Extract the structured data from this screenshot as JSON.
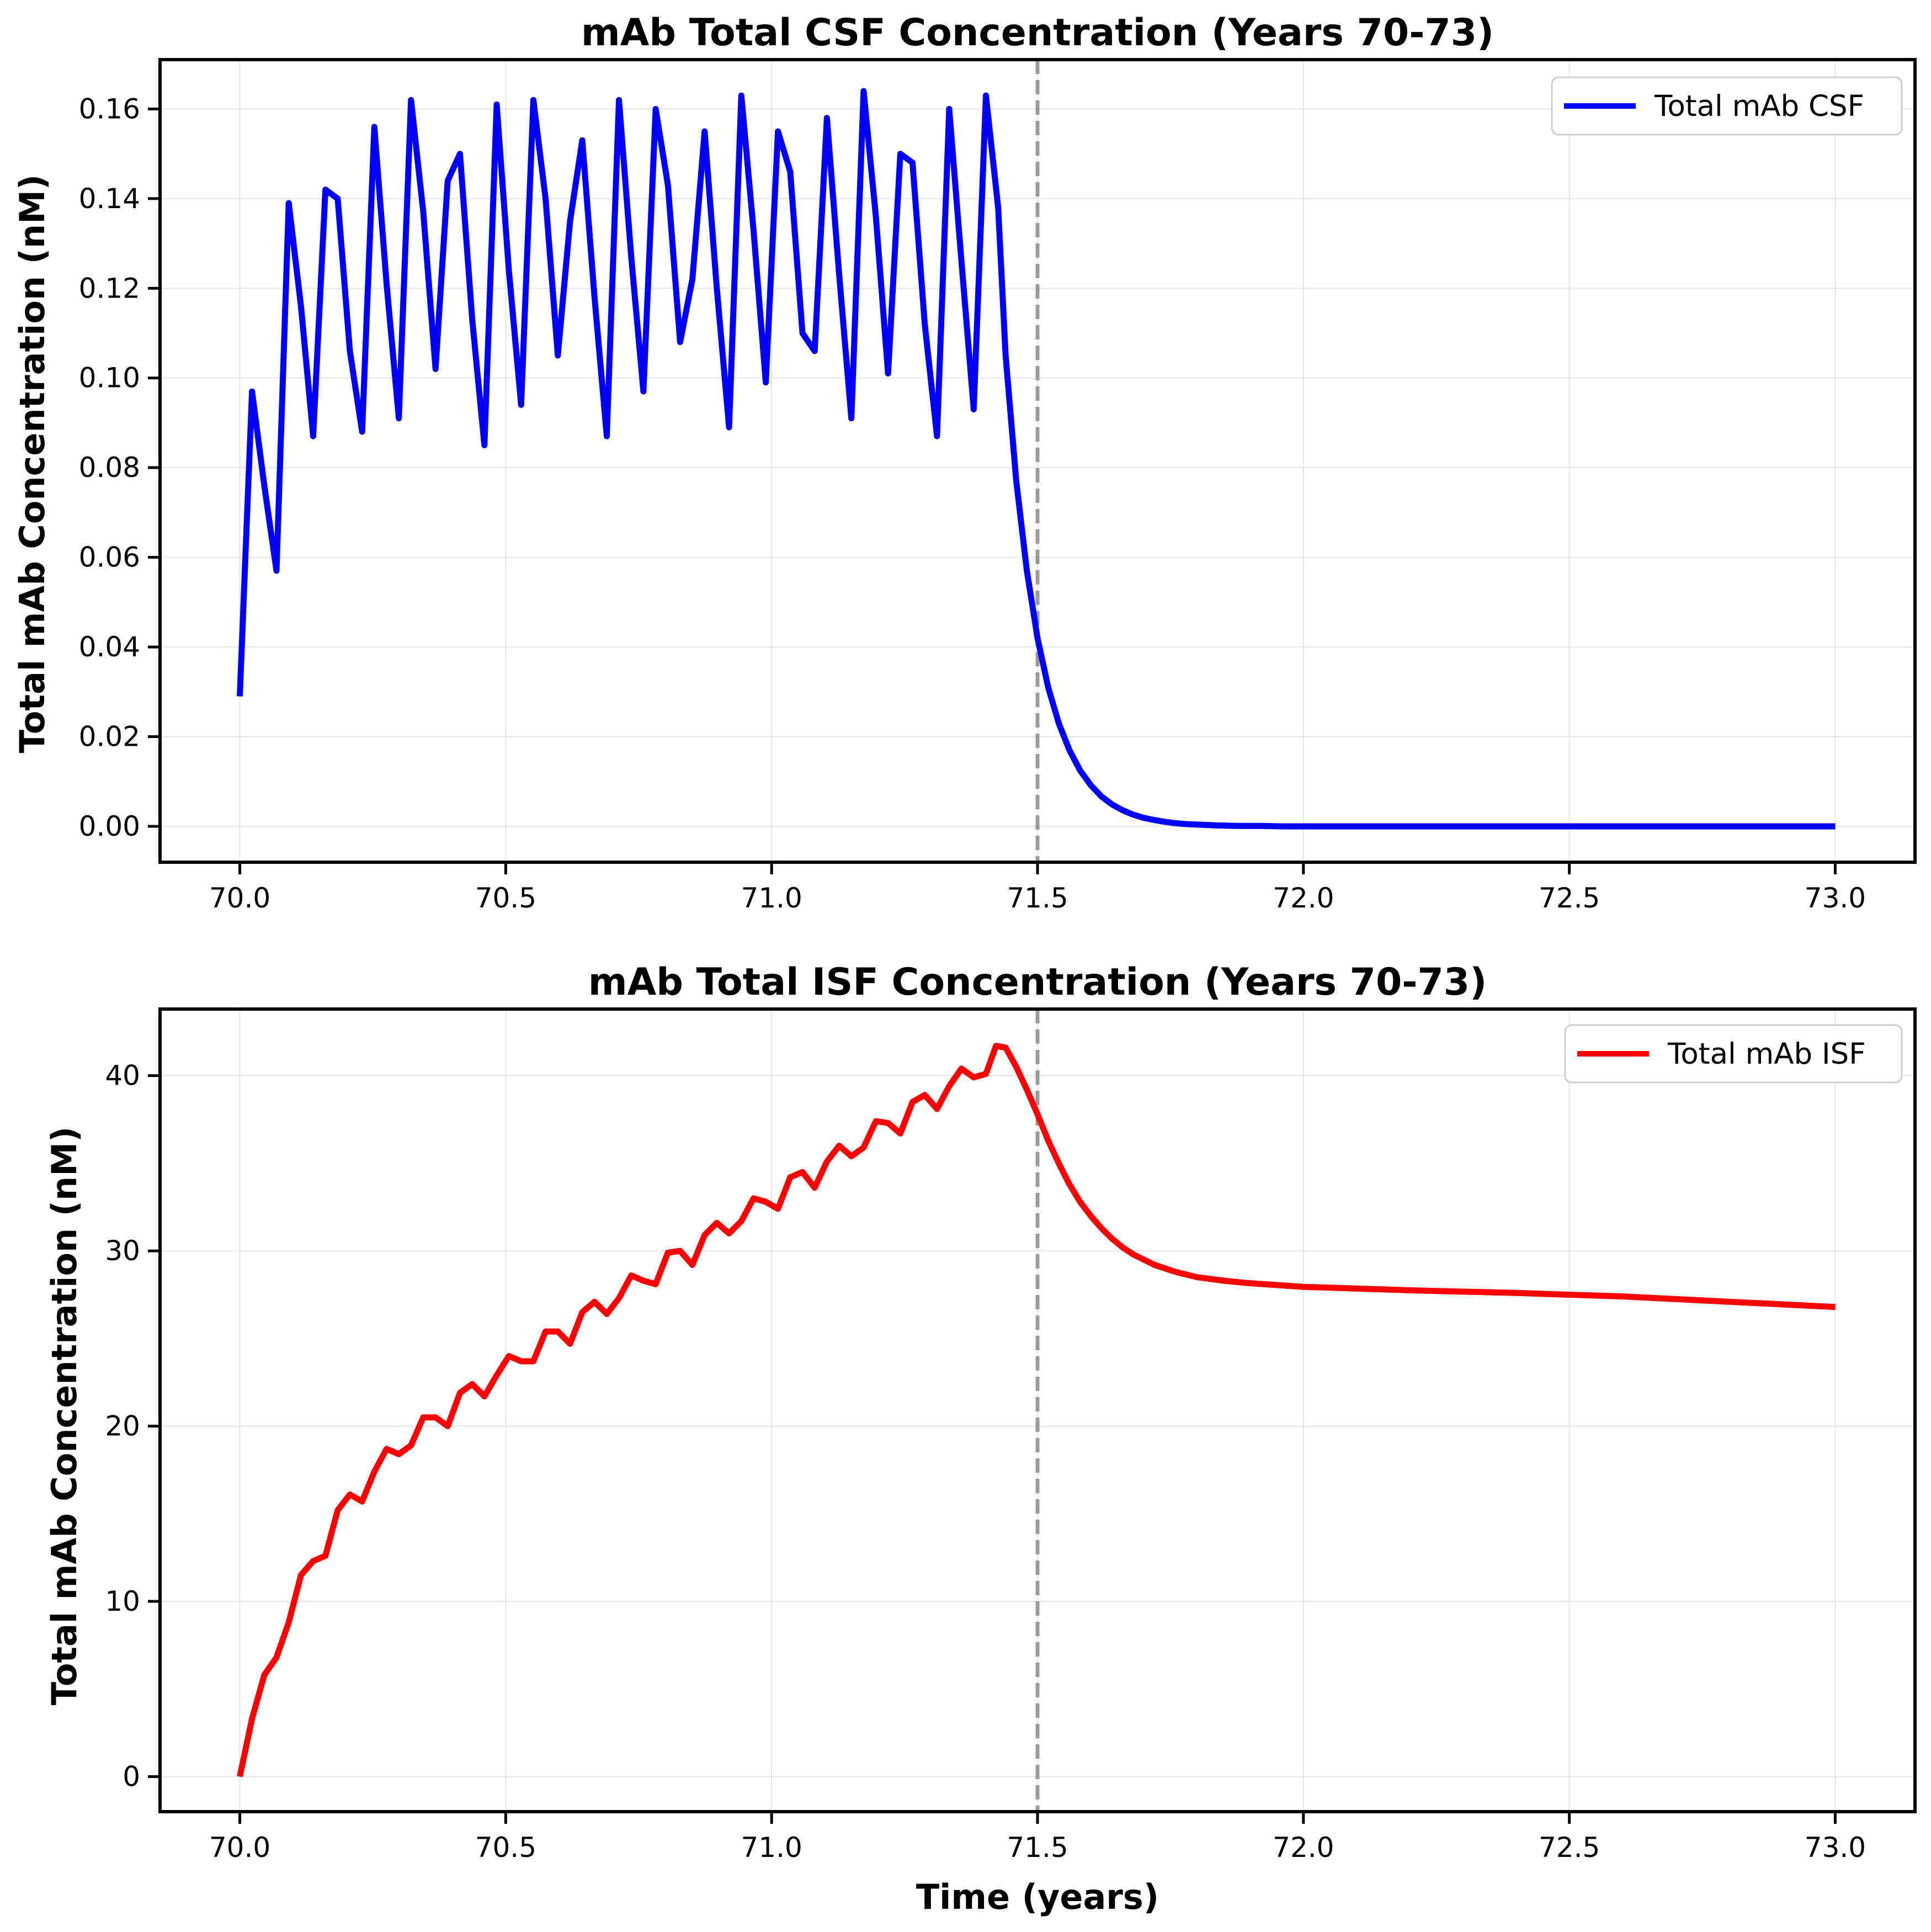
{
  "figure": {
    "background": "#ffffff"
  },
  "chart_data": [
    {
      "type": "line",
      "title": "mAb Total CSF Concentration (Years 70-73)",
      "xlabel": "",
      "ylabel": "Total mAb Concentration (nM)",
      "xlim": [
        69.85,
        73.15
      ],
      "ylim": [
        -0.008,
        0.171
      ],
      "xticks": [
        70.0,
        70.5,
        71.0,
        71.5,
        72.0,
        72.5,
        73.0
      ],
      "xtick_labels": [
        "70.0",
        "70.5",
        "71.0",
        "71.5",
        "72.0",
        "72.5",
        "73.0"
      ],
      "yticks": [
        0.0,
        0.02,
        0.04,
        0.06,
        0.08,
        0.1,
        0.12,
        0.14,
        0.16
      ],
      "ytick_labels": [
        "0.00",
        "0.02",
        "0.04",
        "0.06",
        "0.08",
        "0.10",
        "0.12",
        "0.14",
        "0.16"
      ],
      "grid": true,
      "legend": "top-right",
      "vline": {
        "x": 71.5,
        "color": "#999999",
        "style": "dashed"
      },
      "series": [
        {
          "name": "Total mAb CSF",
          "color": "#0000ff",
          "x": [
            70.0,
            70.023,
            70.046,
            70.069,
            70.092,
            70.115,
            70.138,
            70.161,
            70.184,
            70.207,
            70.23,
            70.253,
            70.276,
            70.299,
            70.322,
            70.345,
            70.368,
            70.391,
            70.414,
            70.437,
            70.46,
            70.483,
            70.506,
            70.529,
            70.552,
            70.575,
            70.598,
            70.621,
            70.644,
            70.667,
            70.69,
            70.713,
            70.736,
            70.759,
            70.782,
            70.805,
            70.828,
            70.851,
            70.874,
            70.897,
            70.92,
            70.943,
            70.966,
            70.989,
            71.012,
            71.035,
            71.058,
            71.081,
            71.104,
            71.127,
            71.15,
            71.173,
            71.196,
            71.219,
            71.242,
            71.265,
            71.288,
            71.311,
            71.334,
            71.357,
            71.38,
            71.403,
            71.426,
            71.44,
            71.46,
            71.48,
            71.5,
            71.52,
            71.54,
            71.56,
            71.58,
            71.6,
            71.62,
            71.64,
            71.66,
            71.68,
            71.7,
            71.72,
            71.74,
            71.76,
            71.78,
            71.8,
            71.84,
            71.88,
            71.92,
            71.96,
            72.0,
            72.1,
            72.2,
            72.4,
            72.6,
            72.8,
            73.0
          ],
          "y": [
            0.029,
            0.097,
            0.076,
            0.057,
            0.139,
            0.116,
            0.087,
            0.142,
            0.14,
            0.106,
            0.088,
            0.156,
            0.121,
            0.091,
            0.162,
            0.137,
            0.102,
            0.144,
            0.15,
            0.113,
            0.085,
            0.161,
            0.124,
            0.094,
            0.162,
            0.14,
            0.105,
            0.135,
            0.153,
            0.118,
            0.087,
            0.162,
            0.127,
            0.097,
            0.16,
            0.143,
            0.108,
            0.122,
            0.155,
            0.12,
            0.089,
            0.163,
            0.133,
            0.099,
            0.155,
            0.146,
            0.11,
            0.106,
            0.158,
            0.123,
            0.091,
            0.164,
            0.136,
            0.101,
            0.15,
            0.148,
            0.112,
            0.087,
            0.16,
            0.126,
            0.093,
            0.163,
            0.138,
            0.105,
            0.077,
            0.057,
            0.042,
            0.031,
            0.023,
            0.017,
            0.0125,
            0.0092,
            0.0067,
            0.0049,
            0.0036,
            0.0026,
            0.0019,
            0.0014,
            0.001,
            0.0007,
            0.0005,
            0.0004,
            0.0002,
            0.0001,
            0.0001,
            0.0,
            0.0,
            0.0,
            0.0,
            0.0,
            0.0,
            0.0,
            0.0
          ]
        }
      ]
    },
    {
      "type": "line",
      "title": "mAb Total ISF Concentration (Years 70-73)",
      "xlabel": "Time (years)",
      "ylabel": "Total mAb Concentration (nM)",
      "xlim": [
        69.85,
        73.15
      ],
      "ylim": [
        -2.0,
        43.8
      ],
      "xticks": [
        70.0,
        70.5,
        71.0,
        71.5,
        72.0,
        72.5,
        73.0
      ],
      "xtick_labels": [
        "70.0",
        "70.5",
        "71.0",
        "71.5",
        "72.0",
        "72.5",
        "73.0"
      ],
      "yticks": [
        0,
        10,
        20,
        30,
        40
      ],
      "ytick_labels": [
        "0",
        "10",
        "20",
        "30",
        "40"
      ],
      "grid": true,
      "legend": "top-right",
      "vline": {
        "x": 71.5,
        "color": "#999999",
        "style": "dashed"
      },
      "series": [
        {
          "name": "Total mAb ISF",
          "color": "#ff0000",
          "x": [
            70.0,
            70.023,
            70.046,
            70.069,
            70.092,
            70.115,
            70.138,
            70.161,
            70.184,
            70.207,
            70.23,
            70.253,
            70.276,
            70.299,
            70.322,
            70.345,
            70.368,
            70.391,
            70.414,
            70.437,
            70.46,
            70.483,
            70.506,
            70.529,
            70.552,
            70.575,
            70.598,
            70.621,
            70.644,
            70.667,
            70.69,
            70.713,
            70.736,
            70.759,
            70.782,
            70.805,
            70.828,
            70.851,
            70.874,
            70.897,
            70.92,
            70.943,
            70.966,
            70.989,
            71.012,
            71.035,
            71.058,
            71.081,
            71.104,
            71.127,
            71.15,
            71.173,
            71.196,
            71.219,
            71.242,
            71.265,
            71.288,
            71.311,
            71.334,
            71.357,
            71.38,
            71.403,
            71.422,
            71.44,
            71.46,
            71.48,
            71.5,
            71.52,
            71.54,
            71.56,
            71.58,
            71.6,
            71.62,
            71.64,
            71.66,
            71.68,
            71.7,
            71.72,
            71.74,
            71.76,
            71.78,
            71.8,
            71.85,
            71.9,
            71.95,
            72.0,
            72.2,
            72.4,
            72.6,
            72.8,
            73.0
          ],
          "y": [
            0.0,
            3.3,
            5.8,
            6.8,
            8.8,
            11.5,
            12.3,
            12.6,
            15.2,
            16.1,
            15.7,
            17.4,
            18.7,
            18.4,
            18.9,
            20.5,
            20.5,
            20.0,
            21.9,
            22.4,
            21.7,
            22.9,
            24.0,
            23.7,
            23.7,
            25.4,
            25.4,
            24.7,
            26.5,
            27.1,
            26.4,
            27.3,
            28.6,
            28.3,
            28.1,
            29.9,
            30.0,
            29.2,
            30.9,
            31.6,
            31.0,
            31.7,
            33.0,
            32.8,
            32.4,
            34.2,
            34.5,
            33.6,
            35.1,
            36.0,
            35.4,
            35.9,
            37.4,
            37.3,
            36.7,
            38.5,
            38.9,
            38.1,
            39.4,
            40.4,
            39.9,
            40.1,
            41.7,
            41.6,
            40.5,
            39.2,
            37.8,
            36.3,
            35.0,
            33.8,
            32.8,
            32.0,
            31.3,
            30.7,
            30.2,
            29.8,
            29.5,
            29.2,
            29.0,
            28.8,
            28.65,
            28.5,
            28.3,
            28.15,
            28.05,
            27.95,
            27.75,
            27.6,
            27.4,
            27.1,
            26.8
          ]
        }
      ]
    }
  ]
}
